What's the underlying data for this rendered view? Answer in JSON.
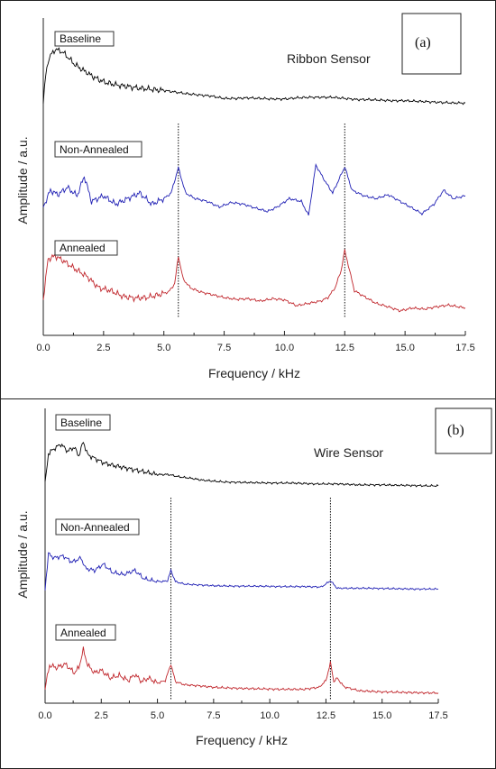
{
  "chart_data": [
    {
      "type": "line",
      "panel_label": "(a)",
      "annotation": "Ribbon Sensor",
      "xlabel": "Frequency / kHz",
      "ylabel": "Amplitude / a.u.",
      "xlim": [
        0,
        17.5
      ],
      "xticks": [
        "0.0",
        "2.5",
        "5.0",
        "7.5",
        "10.0",
        "12.5",
        "15.0",
        "17.5"
      ],
      "grid": false,
      "reference_lines_khz": [
        5.6,
        12.5
      ],
      "series": [
        {
          "name": "Baseline",
          "color": "#000000",
          "x": [
            0.0,
            0.1,
            0.2,
            0.35,
            0.5,
            0.7,
            0.9,
            1.1,
            1.3,
            1.6,
            1.8,
            2.0,
            2.3,
            2.6,
            3.0,
            3.5,
            4.0,
            4.5,
            5.0,
            5.5,
            6.0,
            6.5,
            7.0,
            7.5,
            8.0,
            8.5,
            9.0,
            9.5,
            10.0,
            10.5,
            11.0,
            11.5,
            12.0,
            12.5,
            13.0,
            13.5,
            14.0,
            14.5,
            15.0,
            15.5,
            16.0,
            16.5,
            17.0,
            17.5
          ],
          "y": [
            0.05,
            0.55,
            0.8,
            0.93,
            1.0,
            0.98,
            0.92,
            0.83,
            0.74,
            0.65,
            0.6,
            0.54,
            0.47,
            0.42,
            0.38,
            0.35,
            0.32,
            0.3,
            0.28,
            0.25,
            0.22,
            0.2,
            0.18,
            0.14,
            0.14,
            0.15,
            0.14,
            0.13,
            0.13,
            0.15,
            0.16,
            0.16,
            0.16,
            0.14,
            0.12,
            0.12,
            0.11,
            0.1,
            0.1,
            0.09,
            0.08,
            0.07,
            0.06,
            0.06
          ]
        },
        {
          "name": "Non-Annealed",
          "color": "#1f1fb4",
          "x": [
            0.0,
            0.3,
            0.6,
            1.0,
            1.4,
            1.7,
            2.0,
            2.5,
            3.0,
            3.5,
            4.0,
            4.5,
            5.0,
            5.3,
            5.6,
            5.9,
            6.3,
            6.8,
            7.3,
            7.8,
            8.3,
            8.8,
            9.3,
            9.7,
            10.2,
            10.7,
            11.0,
            11.3,
            11.7,
            12.0,
            12.5,
            12.8,
            13.3,
            13.8,
            14.3,
            14.8,
            15.3,
            15.7,
            16.2,
            16.6,
            17.0,
            17.5
          ],
          "y": [
            0.2,
            0.5,
            0.42,
            0.55,
            0.4,
            0.75,
            0.3,
            0.4,
            0.25,
            0.35,
            0.45,
            0.25,
            0.35,
            0.45,
            0.9,
            0.45,
            0.35,
            0.3,
            0.2,
            0.28,
            0.25,
            0.18,
            0.12,
            0.2,
            0.35,
            0.3,
            0.05,
            0.95,
            0.65,
            0.45,
            0.92,
            0.5,
            0.4,
            0.35,
            0.42,
            0.3,
            0.18,
            0.08,
            0.25,
            0.5,
            0.35,
            0.4
          ]
        },
        {
          "name": "Annealed",
          "color": "#c0262c",
          "x": [
            0.0,
            0.2,
            0.5,
            0.9,
            1.3,
            1.8,
            2.3,
            2.8,
            3.3,
            3.8,
            4.3,
            4.8,
            5.2,
            5.45,
            5.6,
            5.8,
            6.1,
            6.5,
            7.0,
            7.5,
            8.0,
            8.5,
            9.0,
            9.5,
            10.0,
            10.5,
            11.0,
            11.5,
            11.8,
            12.1,
            12.35,
            12.5,
            12.7,
            12.9,
            13.3,
            13.8,
            14.3,
            14.8,
            15.3,
            15.8,
            16.3,
            16.8,
            17.5
          ],
          "y": [
            0.25,
            0.95,
            1.0,
            0.9,
            0.78,
            0.65,
            0.45,
            0.4,
            0.3,
            0.27,
            0.28,
            0.33,
            0.38,
            0.52,
            1.0,
            0.6,
            0.45,
            0.38,
            0.33,
            0.28,
            0.25,
            0.26,
            0.22,
            0.26,
            0.24,
            0.14,
            0.18,
            0.22,
            0.28,
            0.45,
            0.75,
            1.1,
            0.75,
            0.4,
            0.3,
            0.18,
            0.12,
            0.05,
            0.1,
            0.08,
            0.12,
            0.15,
            0.1
          ]
        }
      ]
    },
    {
      "type": "line",
      "panel_label": "(b)",
      "annotation": "Wire Sensor",
      "xlabel": "Frequency / kHz",
      "ylabel": "Amplitude / a.u.",
      "xlim": [
        0,
        17.5
      ],
      "xticks": [
        "0.0",
        "2.5",
        "5.0",
        "7.5",
        "10.0",
        "12.5",
        "15.0",
        "17.5"
      ],
      "grid": false,
      "reference_lines_khz": [
        5.6,
        12.7
      ],
      "series": [
        {
          "name": "Baseline",
          "color": "#000000",
          "x": [
            0.0,
            0.15,
            0.4,
            0.7,
            1.0,
            1.3,
            1.5,
            1.7,
            1.9,
            2.2,
            2.6,
            3.0,
            3.5,
            4.0,
            4.5,
            5.0,
            5.5,
            6.0,
            6.5,
            7.0,
            7.5,
            8.0,
            9.0,
            10.0,
            11.0,
            12.0,
            13.0,
            14.0,
            15.0,
            16.0,
            17.0,
            17.5
          ],
          "y": [
            0.1,
            0.75,
            0.85,
            0.95,
            0.8,
            0.88,
            0.7,
            1.0,
            0.72,
            0.65,
            0.55,
            0.5,
            0.45,
            0.4,
            0.35,
            0.3,
            0.3,
            0.25,
            0.22,
            0.18,
            0.16,
            0.14,
            0.13,
            0.12,
            0.12,
            0.1,
            0.1,
            0.08,
            0.08,
            0.07,
            0.06,
            0.06
          ]
        },
        {
          "name": "Non-Annealed",
          "color": "#1f1fb4",
          "x": [
            0.0,
            0.15,
            0.4,
            0.8,
            1.2,
            1.6,
            1.8,
            2.2,
            2.6,
            3.0,
            3.5,
            4.0,
            4.4,
            4.8,
            5.2,
            5.45,
            5.6,
            5.8,
            6.2,
            6.8,
            7.5,
            8.5,
            9.5,
            10.5,
            11.5,
            12.3,
            12.7,
            13.0,
            13.5,
            14.5,
            15.5,
            16.5,
            17.5
          ],
          "y": [
            0.1,
            0.95,
            0.85,
            0.9,
            0.75,
            0.85,
            0.6,
            0.55,
            0.7,
            0.5,
            0.45,
            0.55,
            0.35,
            0.3,
            0.28,
            0.3,
            0.55,
            0.28,
            0.22,
            0.2,
            0.18,
            0.17,
            0.17,
            0.16,
            0.16,
            0.15,
            0.3,
            0.12,
            0.12,
            0.12,
            0.11,
            0.1,
            0.1
          ]
        },
        {
          "name": "Annealed",
          "color": "#c0262c",
          "x": [
            0.0,
            0.2,
            0.5,
            0.9,
            1.3,
            1.5,
            1.7,
            1.9,
            2.2,
            2.5,
            2.9,
            3.3,
            3.7,
            4.0,
            4.3,
            4.6,
            5.0,
            5.35,
            5.6,
            5.8,
            6.2,
            6.8,
            7.5,
            8.5,
            9.5,
            10.5,
            11.5,
            12.2,
            12.5,
            12.7,
            12.85,
            13.0,
            13.3,
            14.0,
            15.0,
            16.0,
            17.0,
            17.5
          ],
          "y": [
            0.15,
            0.6,
            0.55,
            0.62,
            0.45,
            0.55,
            0.9,
            0.6,
            0.45,
            0.5,
            0.35,
            0.4,
            0.3,
            0.42,
            0.28,
            0.35,
            0.25,
            0.3,
            0.62,
            0.28,
            0.22,
            0.2,
            0.17,
            0.15,
            0.14,
            0.13,
            0.13,
            0.17,
            0.3,
            0.65,
            0.28,
            0.35,
            0.18,
            0.1,
            0.08,
            0.07,
            0.06,
            0.06
          ]
        }
      ]
    }
  ]
}
